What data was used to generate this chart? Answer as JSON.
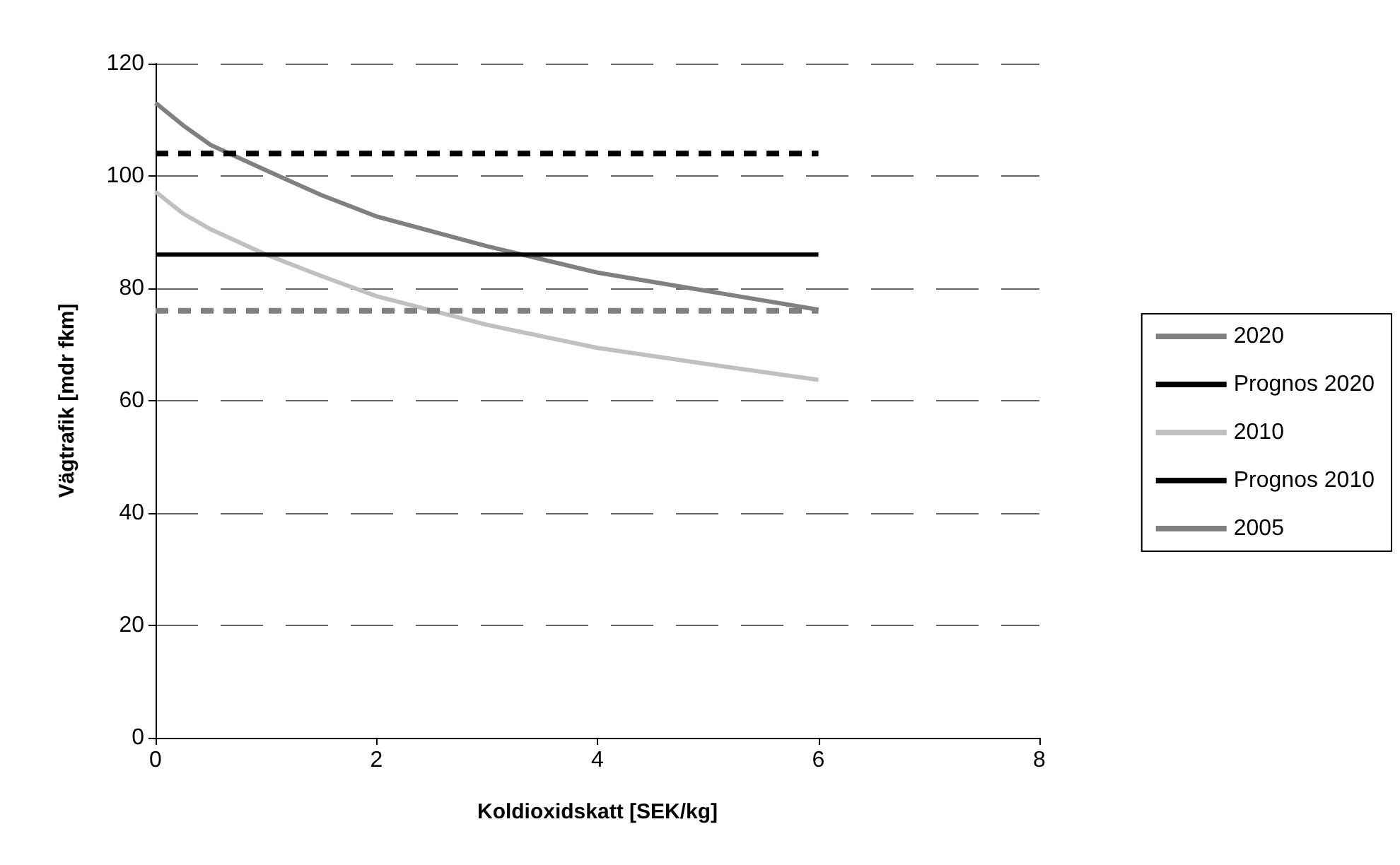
{
  "chart_data": {
    "type": "line",
    "xlabel": "Koldioxidskatt [SEK/kg]",
    "ylabel": "Vägtrafik [mdr fkm]",
    "xlim": [
      0,
      8
    ],
    "xticks": [
      0,
      2,
      4,
      6,
      8
    ],
    "ylim": [
      0,
      120
    ],
    "yticks": [
      0,
      20,
      40,
      60,
      80,
      100,
      120
    ],
    "grid": "y",
    "legend": "right",
    "marker": "none",
    "series": [
      {
        "name": "2020",
        "color": "#808080",
        "line_style": "solid",
        "x": [
          0,
          0.25,
          0.5,
          1,
          1.5,
          2,
          3,
          4,
          5,
          6
        ],
        "values": [
          113,
          109,
          105.5,
          101,
          96.6,
          92.8,
          87.5,
          82.8,
          79.5,
          76.2
        ]
      },
      {
        "name": "Prognos 2020",
        "color": "#000000",
        "line_style": "dashed",
        "x": [
          0,
          6
        ],
        "values": [
          104,
          104
        ]
      },
      {
        "name": "2010",
        "color": "#c0c0c0",
        "line_style": "solid",
        "x": [
          0,
          0.25,
          0.5,
          1,
          1.5,
          2,
          3,
          4,
          5,
          6
        ],
        "values": [
          97.2,
          93.3,
          90.5,
          86,
          82.2,
          78.6,
          73.5,
          69.4,
          66.5,
          63.7
        ]
      },
      {
        "name": "Prognos 2010",
        "color": "#000000",
        "line_style": "solid",
        "x": [
          0,
          6
        ],
        "values": [
          86,
          86
        ]
      },
      {
        "name": "2005",
        "color": "#808080",
        "line_style": "dashed",
        "x": [
          0,
          6
        ],
        "values": [
          76,
          76
        ]
      }
    ]
  }
}
